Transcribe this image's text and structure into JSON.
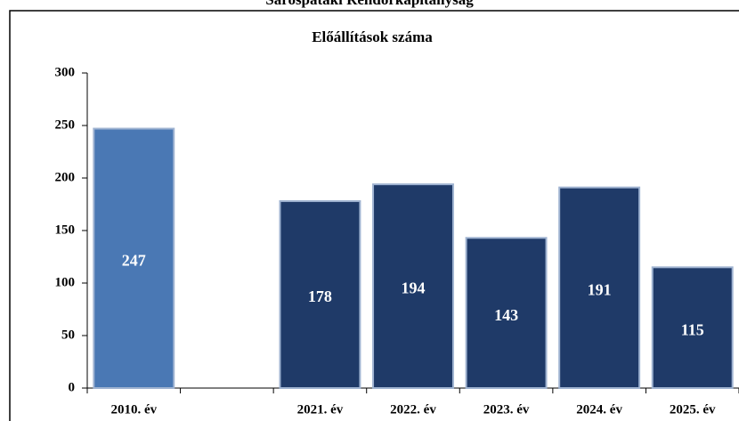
{
  "page_title": "Sárospataki Rendőrkapitányság",
  "chart_data": {
    "type": "bar",
    "title": "Előállítások száma",
    "categories": [
      "2010. év",
      null,
      "2021. év",
      "2022. év",
      "2023. év",
      "2024. év",
      "2025. év"
    ],
    "values": [
      247,
      null,
      178,
      194,
      143,
      191,
      115
    ],
    "colors": [
      "#4a78b4",
      null,
      "#1f3a68",
      "#1f3a68",
      "#1f3a68",
      "#1f3a68",
      "#1f3a68"
    ],
    "ylim": [
      0,
      300
    ],
    "yticks": [
      0,
      50,
      100,
      150,
      200,
      250,
      300
    ],
    "grid": false
  }
}
